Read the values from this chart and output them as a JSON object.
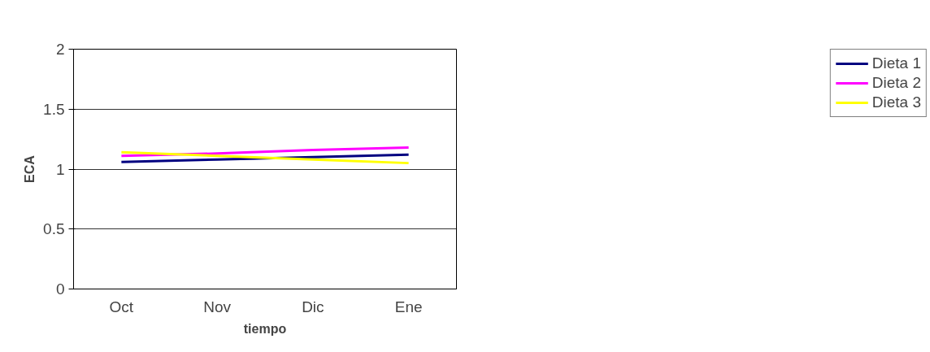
{
  "chart_data": {
    "type": "line",
    "xlabel": "tiempo",
    "ylabel": "ECA",
    "categories": [
      "Oct",
      "Nov",
      "Dic",
      "Ene"
    ],
    "series": [
      {
        "name": "Dieta 1",
        "color": "#000080",
        "values": [
          1.06,
          1.08,
          1.1,
          1.12
        ]
      },
      {
        "name": "Dieta 2",
        "color": "#ff00ff",
        "values": [
          1.11,
          1.13,
          1.16,
          1.18
        ]
      },
      {
        "name": "Dieta 3",
        "color": "#ffff00",
        "values": [
          1.14,
          1.11,
          1.08,
          1.05
        ]
      }
    ],
    "ylim": [
      0,
      2
    ],
    "yticks": [
      0,
      0.5,
      1,
      1.5,
      2
    ],
    "grid": "y",
    "legend": "right",
    "marker": "none",
    "line_style": "solid"
  }
}
